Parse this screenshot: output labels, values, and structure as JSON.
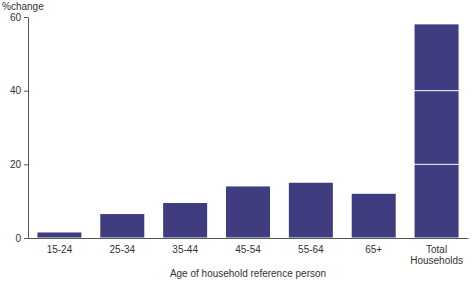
{
  "chart_data": {
    "type": "bar",
    "y_label": "%change",
    "x_label": "Age of household reference person",
    "categories": [
      "15-24",
      "25-34",
      "35-44",
      "45-54",
      "55-64",
      "65+",
      "Total Households"
    ],
    "values": [
      1.5,
      6.5,
      9.5,
      14,
      15,
      12,
      58
    ],
    "color": "#3f3d80",
    "ylim": [
      0,
      60
    ],
    "yticks": [
      0,
      20,
      40,
      60
    ],
    "grid": true
  }
}
